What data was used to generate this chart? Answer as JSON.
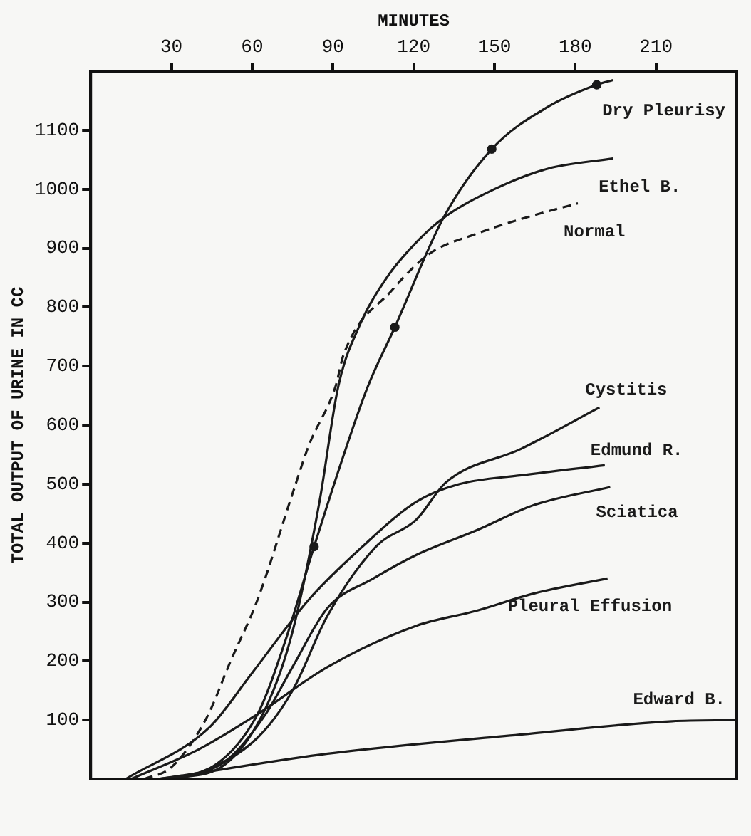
{
  "chart_data": {
    "type": "line",
    "xlabel": "MINUTES",
    "ylabel": "TOTAL OUTPUT OF URINE IN CC",
    "xlim": [
      0,
      240
    ],
    "xticks": [
      30,
      60,
      90,
      120,
      150,
      180,
      210
    ],
    "ylim": [
      0,
      1200
    ],
    "yticks": [
      100,
      200,
      300,
      400,
      500,
      600,
      700,
      800,
      900,
      1000,
      1100
    ],
    "grid": false,
    "legend": false,
    "marker": "none",
    "series": [
      {
        "name": "Dry Pleurisy",
        "color": "#1a1a1a",
        "line_style": "solid",
        "x": [
          25,
          45,
          62,
          72,
          83,
          95,
          103,
          113,
          131,
          149,
          170,
          188,
          194
        ],
        "values": [
          0,
          20,
          110,
          230,
          394,
          563,
          666,
          766,
          951,
          1068,
          1140,
          1177,
          1185
        ]
      },
      {
        "name": "Ethel B.",
        "color": "#1a1a1a",
        "line_style": "solid",
        "x": [
          30,
          50,
          65,
          75,
          85,
          92,
          100,
          110,
          121,
          131,
          150,
          170,
          194
        ],
        "values": [
          0,
          25,
          120,
          250,
          470,
          666,
          770,
          850,
          910,
          951,
          1000,
          1035,
          1052
        ]
      },
      {
        "name": "Normal",
        "color": "#1a1a1a",
        "line_style": "dashed",
        "x": [
          20,
          30,
          43,
          52,
          62,
          75,
          81,
          91,
          94,
          112,
          126,
          143,
          161,
          181
        ],
        "values": [
          0,
          20,
          103,
          200,
          304,
          484,
          565,
          666,
          720,
          829,
          891,
          924,
          951,
          976
        ]
      },
      {
        "name": "Cystitis",
        "color": "#1a1a1a",
        "line_style": "solid",
        "x": [
          30,
          40,
          62,
          75,
          88,
          106,
          121,
          132,
          160,
          189
        ],
        "values": [
          0,
          10,
          70,
          150,
          277,
          394,
          440,
          503,
          560,
          630
        ]
      },
      {
        "name": "Edmund R.",
        "color": "#1a1a1a",
        "line_style": "solid",
        "x": [
          13,
          44,
          60,
          81,
          100,
          121,
          137,
          160,
          191
        ],
        "values": [
          0,
          87,
          180,
          304,
          390,
          470,
          500,
          515,
          532
        ]
      },
      {
        "name": "Sciatica",
        "color": "#1a1a1a",
        "line_style": "solid",
        "x": [
          30,
          50,
          65,
          75,
          88,
          105,
          121,
          143,
          165,
          193
        ],
        "values": [
          0,
          30,
          110,
          190,
          290,
          340,
          380,
          421,
          465,
          495
        ]
      },
      {
        "name": "Pleural Effusion",
        "color": "#1a1a1a",
        "line_style": "solid",
        "x": [
          15,
          40,
          62,
          88,
          121,
          143,
          165,
          192
        ],
        "values": [
          0,
          50,
          110,
          190,
          260,
          285,
          315,
          340
        ]
      },
      {
        "name": "Edward B.",
        "color": "#1a1a1a",
        "line_style": "solid",
        "x": [
          25,
          37,
          88,
          161,
          216,
          240
        ],
        "values": [
          0,
          8,
          43,
          76,
          98,
          100
        ]
      },
      {
        "type": "scatter",
        "marker": "circle",
        "color": "#1a1a1a",
        "x": [
          83,
          113,
          149,
          188
        ],
        "values": [
          394,
          766,
          1068,
          1177
        ]
      }
    ]
  }
}
